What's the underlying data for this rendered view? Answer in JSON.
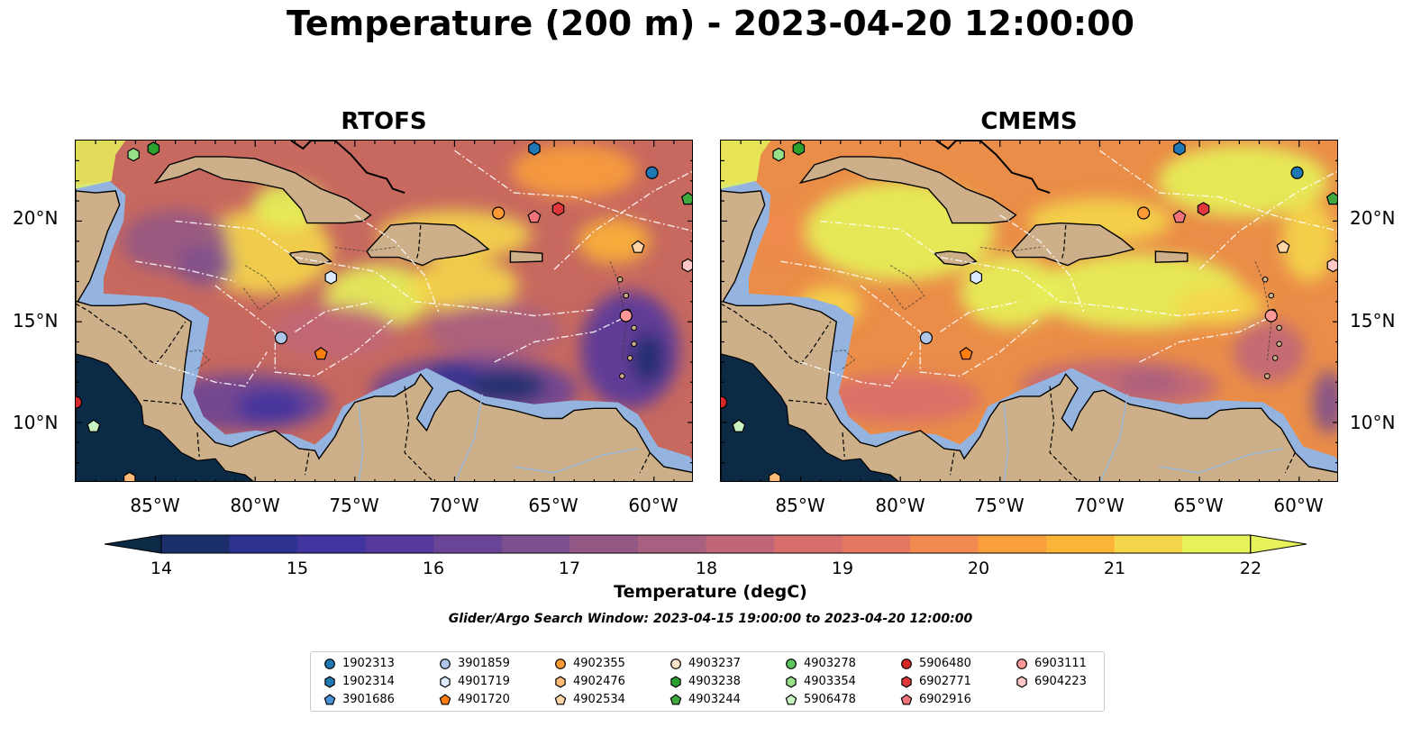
{
  "title": "Temperature (200 m) - 2023-04-20 12:00:00",
  "panels": [
    {
      "title": "RTOFS"
    },
    {
      "title": "CMEMS"
    }
  ],
  "lat_labels": [
    "20°N",
    "15°N",
    "10°N"
  ],
  "lon_labels": [
    "85°W",
    "80°W",
    "75°W",
    "70°W",
    "65°W",
    "60°W"
  ],
  "map_extent": {
    "lon": [
      -89,
      -58
    ],
    "lat": [
      7,
      24
    ]
  },
  "colorbar": {
    "label": "Temperature (degC)",
    "ticks": [
      "14",
      "15",
      "16",
      "17",
      "18",
      "19",
      "20",
      "21",
      "22"
    ],
    "range": [
      14,
      22
    ],
    "colors": [
      "#0b2a45",
      "#1c2f6d",
      "#2d3290",
      "#40359f",
      "#55399d",
      "#6a4496",
      "#7d4f8e",
      "#945884",
      "#a95f7f",
      "#c06678",
      "#d86e6b",
      "#e57762",
      "#f08a4e",
      "#f89e3b",
      "#fbb338",
      "#f4d64a",
      "#e5f25a"
    ]
  },
  "window_text": "Glider/Argo Search Window: 2023-04-15 19:00:00 to 2023-04-20 12:00:00",
  "legend": {
    "items": [
      {
        "id": "1902313",
        "shape": "circle",
        "color": "#1f77b4"
      },
      {
        "id": "1902314",
        "shape": "hexagon",
        "color": "#1f77b4"
      },
      {
        "id": "3901686",
        "shape": "pentagon",
        "color": "#4a90d9"
      },
      {
        "id": "3901859",
        "shape": "circle",
        "color": "#aec7e8"
      },
      {
        "id": "4901719",
        "shape": "hexagon",
        "color": "#dbeaff"
      },
      {
        "id": "4901720",
        "shape": "pentagon",
        "color": "#ff7f0e"
      },
      {
        "id": "4902355",
        "shape": "circle",
        "color": "#ff9933"
      },
      {
        "id": "4902476",
        "shape": "hexagon",
        "color": "#ffbb78"
      },
      {
        "id": "4902534",
        "shape": "pentagon",
        "color": "#ffd5a8"
      },
      {
        "id": "4903237",
        "shape": "circle",
        "color": "#fde3c8"
      },
      {
        "id": "4903238",
        "shape": "hexagon",
        "color": "#2ca02c"
      },
      {
        "id": "4903244",
        "shape": "pentagon",
        "color": "#3fa93f"
      },
      {
        "id": "4903278",
        "shape": "circle",
        "color": "#5fc35f"
      },
      {
        "id": "4903354",
        "shape": "hexagon",
        "color": "#98df8a"
      },
      {
        "id": "5906478",
        "shape": "pentagon",
        "color": "#c8f2c0"
      },
      {
        "id": "5906480",
        "shape": "circle",
        "color": "#d62728"
      },
      {
        "id": "6902771",
        "shape": "hexagon",
        "color": "#e0383a"
      },
      {
        "id": "6902916",
        "shape": "pentagon",
        "color": "#f0747a"
      },
      {
        "id": "6903111",
        "shape": "circle",
        "color": "#ff9896"
      },
      {
        "id": "6904223",
        "shape": "hexagon",
        "color": "#ffc8c6"
      }
    ]
  },
  "floats": [
    {
      "id": "1902313",
      "lon": -60.1,
      "lat": 22.4
    },
    {
      "id": "1902314",
      "lon": -66.0,
      "lat": 23.6
    },
    {
      "id": "4903238",
      "lon": -85.1,
      "lat": 23.6
    },
    {
      "id": "4903244",
      "lon": -58.3,
      "lat": 21.1
    },
    {
      "id": "4903354",
      "lon": -86.1,
      "lat": 23.3
    },
    {
      "id": "4902355",
      "lon": -67.8,
      "lat": 20.4
    },
    {
      "id": "6902916",
      "lon": -66.0,
      "lat": 20.2
    },
    {
      "id": "6902771",
      "lon": -64.8,
      "lat": 20.6
    },
    {
      "id": "4902534",
      "lon": -60.8,
      "lat": 18.7
    },
    {
      "id": "6904223",
      "lon": -58.3,
      "lat": 17.8
    },
    {
      "id": "4901719",
      "lon": -76.2,
      "lat": 17.2
    },
    {
      "id": "6903111",
      "lon": -61.4,
      "lat": 15.3
    },
    {
      "id": "3901859",
      "lon": -78.7,
      "lat": 14.2
    },
    {
      "id": "4901720",
      "lon": -76.7,
      "lat": 13.4
    },
    {
      "id": "5906480",
      "lon": -89.0,
      "lat": 11.0
    },
    {
      "id": "5906478",
      "lon": -88.1,
      "lat": 9.8
    },
    {
      "id": "4902476",
      "lon": -86.3,
      "lat": 7.2
    }
  ]
}
